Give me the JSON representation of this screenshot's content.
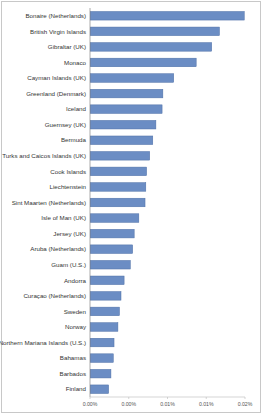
{
  "chart_data": {
    "type": "bar",
    "orientation": "horizontal",
    "categories": [
      "Bonaire (Netherlands)",
      "British Virgin Islands",
      "Gibraltar (UK)",
      "Monaco",
      "Cayman Islands (UK)",
      "Greenland (Denmark)",
      "Iceland",
      "Guernsey (UK)",
      "Bermuda",
      "Turks and Caicos Islands (UK)",
      "Cook Islands",
      "Liechtenstein",
      "Sint Maarten (Netherlands)",
      "Isle of Man (UK)",
      "Jersey (UK)",
      "Aruba (Netherlands)",
      "Guam (U.S.)",
      "Andorra",
      "Curaçao (Netherlands)",
      "Sweden",
      "Norway",
      "Northern Mariana Islands (U.S.)",
      "Bahamas",
      "Barbados",
      "Finland"
    ],
    "values": [
      0.0199,
      0.0167,
      0.0157,
      0.0137,
      0.0108,
      0.0094,
      0.0093,
      0.0085,
      0.0081,
      0.0077,
      0.0073,
      0.0072,
      0.0071,
      0.0063,
      0.0057,
      0.0055,
      0.0052,
      0.0044,
      0.004,
      0.0038,
      0.0036,
      0.0031,
      0.003,
      0.0027,
      0.0024
    ],
    "color": "#6b8dc4",
    "xlim": [
      0,
      0.02
    ],
    "xticks": [
      {
        "value": 0,
        "label": "0.00%"
      },
      {
        "value": 0.005,
        "label": "0.00%"
      },
      {
        "value": 0.01,
        "label": "0.01%"
      },
      {
        "value": 0.015,
        "label": "0.01%"
      },
      {
        "value": 0.02,
        "label": "0.02%"
      }
    ],
    "grid": false
  }
}
